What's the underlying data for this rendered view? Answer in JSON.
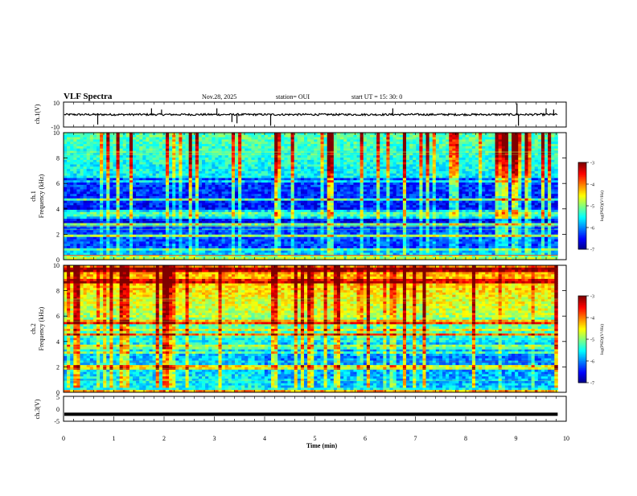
{
  "header": {
    "title": "VLF Spectra",
    "date": "Nov.28, 2025",
    "station": "station= OUI",
    "start": "start  UT  =   15: 30: 0"
  },
  "colors": {
    "colormap": [
      "#00007f",
      "#0000ff",
      "#0080ff",
      "#00ffff",
      "#80ff80",
      "#ffff00",
      "#ff8000",
      "#ff0000",
      "#800000"
    ]
  },
  "chart_data": [
    {
      "type": "line",
      "panel": "ch1-waveform",
      "ylabel": "ch.1(V)",
      "ylim": [
        -10,
        10
      ],
      "yticks": [
        "10",
        "-10"
      ],
      "baseline": 0,
      "spikes": [
        {
          "t": 0.68,
          "v": -8
        },
        {
          "t": 1.75,
          "v": 5
        },
        {
          "t": 1.95,
          "v": 4
        },
        {
          "t": 3.05,
          "v": 5
        },
        {
          "t": 3.35,
          "v": -6
        },
        {
          "t": 3.45,
          "v": -7
        },
        {
          "t": 4.12,
          "v": -9
        },
        {
          "t": 6.55,
          "v": 5
        },
        {
          "t": 9.02,
          "v": 9
        },
        {
          "t": 9.05,
          "v": -9
        },
        {
          "t": 9.6,
          "v": 5
        },
        {
          "t": 9.75,
          "v": 4
        }
      ]
    },
    {
      "type": "heatmap",
      "panel": "ch1-spectrogram",
      "ylabel": "ch.1\nFrequency (kHz)",
      "ylim": [
        0,
        10
      ],
      "yticks": [
        "0",
        "2",
        "4",
        "6",
        "8",
        "10"
      ],
      "colorbar": {
        "label": "log(PSD)(V²/Hz)",
        "range": [
          -7,
          -3
        ],
        "ticks": [
          "-3",
          "-4",
          "-5",
          "-6",
          "-7"
        ]
      }
    },
    {
      "type": "heatmap",
      "panel": "ch2-spectrogram",
      "ylabel": "ch.2\nFrequency (kHz)",
      "ylim": [
        0,
        10
      ],
      "yticks": [
        "0",
        "2",
        "4",
        "6",
        "8",
        "10"
      ],
      "colorbar": {
        "label": "log(PSD)(V²/Hz)",
        "range": [
          -7,
          -3
        ],
        "ticks": [
          "-3",
          "-4",
          "-5",
          "-6",
          "-7"
        ]
      }
    },
    {
      "type": "line",
      "panel": "ch3-waveform",
      "ylabel": "ch.3(V)",
      "ylim": [
        -5,
        5
      ],
      "yticks": [
        "5",
        "0",
        "-5"
      ],
      "baseline": -2.2
    }
  ],
  "xaxis": {
    "label": "Time (min)",
    "xlim": [
      0,
      10
    ],
    "ticks": [
      "0",
      "1",
      "2",
      "3",
      "4",
      "5",
      "6",
      "7",
      "8",
      "9",
      "10"
    ],
    "data_end": 9.83
  }
}
